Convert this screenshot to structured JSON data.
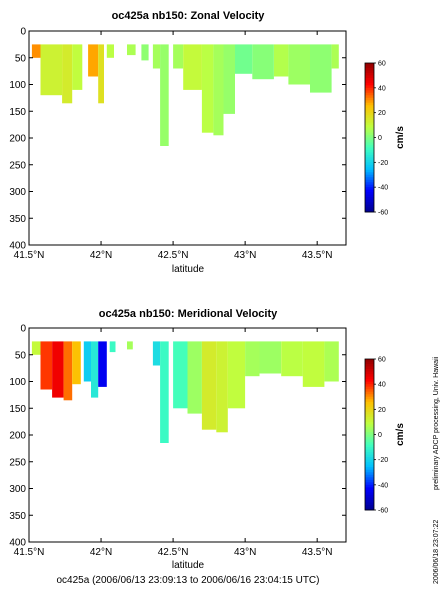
{
  "footer": "oc425a (2006/06/13 23:09:13 to 2006/06/16 23:04:15 UTC)",
  "side_note": "preliminary ADCP processing,  Univ. Hawaii",
  "side_date": "2006/06/18 23:07:22",
  "chart_data": [
    {
      "type": "heatmap",
      "title": "oc425a nb150: Zonal Velocity",
      "xlabel": "latitude",
      "ylabel": "",
      "xlim": [
        41.5,
        43.7
      ],
      "ylim": [
        400,
        0
      ],
      "xticks": [
        41.5,
        42,
        42.5,
        43,
        43.5
      ],
      "xtick_labels": [
        "41.5°N",
        "42°N",
        "42.5°N",
        "43°N",
        "43.5°N"
      ],
      "yticks": [
        0,
        50,
        100,
        150,
        200,
        250,
        300,
        350,
        400
      ],
      "colorbar": {
        "label": "cm/s",
        "range": [
          -60,
          60
        ],
        "ticks": [
          60,
          40,
          20,
          0,
          -20,
          -40,
          -60
        ],
        "colors": [
          "#00008f",
          "#0000ff",
          "#00bfff",
          "#40ffbf",
          "#bfff40",
          "#ffbf00",
          "#ff0000",
          "#8f0000"
        ]
      },
      "columns": [
        {
          "lat_range": [
            41.52,
            41.58
          ],
          "depth_range": [
            25,
            50
          ],
          "value": 30
        },
        {
          "lat_range": [
            41.58,
            41.73
          ],
          "depth_range": [
            25,
            120
          ],
          "value": 12
        },
        {
          "lat_range": [
            41.73,
            41.8
          ],
          "depth_range": [
            25,
            135
          ],
          "value": 14
        },
        {
          "lat_range": [
            41.8,
            41.87
          ],
          "depth_range": [
            25,
            110
          ],
          "value": 9
        },
        {
          "lat_range": [
            41.91,
            41.98
          ],
          "depth_range": [
            25,
            85
          ],
          "value": 28
        },
        {
          "lat_range": [
            41.98,
            42.02
          ],
          "depth_range": [
            25,
            135
          ],
          "value": 17
        },
        {
          "lat_range": [
            42.04,
            42.09
          ],
          "depth_range": [
            25,
            50
          ],
          "value": 8
        },
        {
          "lat_range": [
            42.18,
            42.24
          ],
          "depth_range": [
            25,
            45
          ],
          "value": 6
        },
        {
          "lat_range": [
            42.28,
            42.33
          ],
          "depth_range": [
            25,
            55
          ],
          "value": 2
        },
        {
          "lat_range": [
            42.36,
            42.41
          ],
          "depth_range": [
            25,
            70
          ],
          "value": 5
        },
        {
          "lat_range": [
            42.41,
            42.47
          ],
          "depth_range": [
            25,
            215
          ],
          "value": 3
        },
        {
          "lat_range": [
            42.5,
            42.57
          ],
          "depth_range": [
            25,
            70
          ],
          "value": 5
        },
        {
          "lat_range": [
            42.57,
            42.7
          ],
          "depth_range": [
            25,
            110
          ],
          "value": 10
        },
        {
          "lat_range": [
            42.7,
            42.78
          ],
          "depth_range": [
            25,
            190
          ],
          "value": 8
        },
        {
          "lat_range": [
            42.78,
            42.85
          ],
          "depth_range": [
            25,
            195
          ],
          "value": 5
        },
        {
          "lat_range": [
            42.85,
            42.93
          ],
          "depth_range": [
            25,
            155
          ],
          "value": 3
        },
        {
          "lat_range": [
            42.93,
            43.05
          ],
          "depth_range": [
            25,
            80
          ],
          "value": -2
        },
        {
          "lat_range": [
            43.05,
            43.2
          ],
          "depth_range": [
            25,
            90
          ],
          "value": 1
        },
        {
          "lat_range": [
            43.2,
            43.3
          ],
          "depth_range": [
            25,
            85
          ],
          "value": 7
        },
        {
          "lat_range": [
            43.3,
            43.45
          ],
          "depth_range": [
            25,
            100
          ],
          "value": 4
        },
        {
          "lat_range": [
            43.45,
            43.6
          ],
          "depth_range": [
            25,
            115
          ],
          "value": 2
        },
        {
          "lat_range": [
            43.6,
            43.65
          ],
          "depth_range": [
            25,
            70
          ],
          "value": 6
        }
      ]
    },
    {
      "type": "heatmap",
      "title": "oc425a nb150: Meridional Velocity",
      "xlabel": "latitude",
      "ylabel": "",
      "xlim": [
        41.5,
        43.7
      ],
      "ylim": [
        400,
        0
      ],
      "xticks": [
        41.5,
        42,
        42.5,
        43,
        43.5
      ],
      "xtick_labels": [
        "41.5°N",
        "42°N",
        "42.5°N",
        "43°N",
        "43.5°N"
      ],
      "yticks": [
        0,
        50,
        100,
        150,
        200,
        250,
        300,
        350,
        400
      ],
      "colorbar": {
        "label": "cm/s",
        "range": [
          -60,
          60
        ],
        "ticks": [
          60,
          40,
          20,
          0,
          -20,
          -40,
          -60
        ],
        "colors": [
          "#00008f",
          "#0000ff",
          "#00bfff",
          "#40ffbf",
          "#bfff40",
          "#ffbf00",
          "#ff0000",
          "#8f0000"
        ]
      },
      "columns": [
        {
          "lat_range": [
            41.52,
            41.58
          ],
          "depth_range": [
            25,
            50
          ],
          "value": 10
        },
        {
          "lat_range": [
            41.58,
            41.66
          ],
          "depth_range": [
            25,
            115
          ],
          "value": 38
        },
        {
          "lat_range": [
            41.66,
            41.74
          ],
          "depth_range": [
            25,
            130
          ],
          "value": 45
        },
        {
          "lat_range": [
            41.74,
            41.8
          ],
          "depth_range": [
            25,
            135
          ],
          "value": 33
        },
        {
          "lat_range": [
            41.8,
            41.86
          ],
          "depth_range": [
            25,
            105
          ],
          "value": 25
        },
        {
          "lat_range": [
            41.88,
            41.93
          ],
          "depth_range": [
            25,
            100
          ],
          "value": -22
        },
        {
          "lat_range": [
            41.93,
            41.98
          ],
          "depth_range": [
            25,
            130
          ],
          "value": -15
        },
        {
          "lat_range": [
            41.98,
            42.04
          ],
          "depth_range": [
            25,
            110
          ],
          "value": -45
        },
        {
          "lat_range": [
            42.06,
            42.1
          ],
          "depth_range": [
            25,
            45
          ],
          "value": -10
        },
        {
          "lat_range": [
            42.18,
            42.22
          ],
          "depth_range": [
            25,
            40
          ],
          "value": 5
        },
        {
          "lat_range": [
            42.36,
            42.41
          ],
          "depth_range": [
            25,
            70
          ],
          "value": -18
        },
        {
          "lat_range": [
            42.41,
            42.47
          ],
          "depth_range": [
            25,
            215
          ],
          "value": -10
        },
        {
          "lat_range": [
            42.5,
            42.6
          ],
          "depth_range": [
            25,
            150
          ],
          "value": -8
        },
        {
          "lat_range": [
            42.6,
            42.7
          ],
          "depth_range": [
            25,
            160
          ],
          "value": 4
        },
        {
          "lat_range": [
            42.7,
            42.8
          ],
          "depth_range": [
            25,
            190
          ],
          "value": 14
        },
        {
          "lat_range": [
            42.8,
            42.88
          ],
          "depth_range": [
            25,
            195
          ],
          "value": 12
        },
        {
          "lat_range": [
            42.88,
            43.0
          ],
          "depth_range": [
            25,
            150
          ],
          "value": 9
        },
        {
          "lat_range": [
            43.0,
            43.1
          ],
          "depth_range": [
            25,
            90
          ],
          "value": 5
        },
        {
          "lat_range": [
            43.1,
            43.25
          ],
          "depth_range": [
            25,
            85
          ],
          "value": 4
        },
        {
          "lat_range": [
            43.25,
            43.4
          ],
          "depth_range": [
            25,
            90
          ],
          "value": 8
        },
        {
          "lat_range": [
            43.4,
            43.55
          ],
          "depth_range": [
            25,
            110
          ],
          "value": 9
        },
        {
          "lat_range": [
            43.55,
            43.65
          ],
          "depth_range": [
            25,
            100
          ],
          "value": 6
        }
      ]
    }
  ]
}
